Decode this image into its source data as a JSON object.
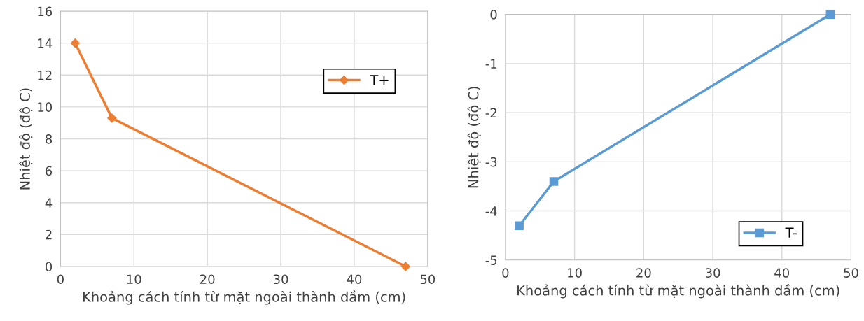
{
  "chart_data": [
    {
      "type": "line",
      "xlabel": "Khoảng cách tính từ mặt ngoài thành dầm (cm)",
      "ylabel": "Nhiệt độ (độ C)",
      "x": [
        2,
        7,
        47
      ],
      "series": [
        {
          "name": "T+",
          "color": "#ed7d31",
          "values": [
            14,
            9.3,
            0
          ]
        }
      ],
      "xlim": [
        0,
        50
      ],
      "xticks": [
        0,
        10,
        20,
        30,
        40,
        50
      ],
      "ylim": [
        0,
        16
      ],
      "yticks": [
        0,
        2,
        4,
        6,
        8,
        10,
        12,
        14,
        16
      ],
      "grid": true,
      "legend": "top right",
      "marker": "diamond"
    },
    {
      "type": "line",
      "xlabel": "Khoảng cách tính từ mặt ngoài thành dầm (cm)",
      "ylabel": "Nhiệt độ (độ C)",
      "x": [
        2,
        7,
        47
      ],
      "series": [
        {
          "name": "T-",
          "color": "#5b9bd5",
          "values": [
            -4.3,
            -3.4,
            0
          ]
        }
      ],
      "xlim": [
        0,
        50
      ],
      "xticks": [
        0,
        10,
        20,
        30,
        40,
        50
      ],
      "ylim": [
        -5,
        0
      ],
      "yticks": [
        {
          "value": -5,
          "label": "-5"
        },
        {
          "value": -4,
          "label": "-4"
        },
        {
          "value": -3,
          "label": "-3"
        },
        {
          "value": -2,
          "label": "-2"
        },
        {
          "value": -1,
          "label": "-1"
        },
        0
      ],
      "grid": true,
      "legend": "bottom right",
      "marker": "square"
    }
  ]
}
